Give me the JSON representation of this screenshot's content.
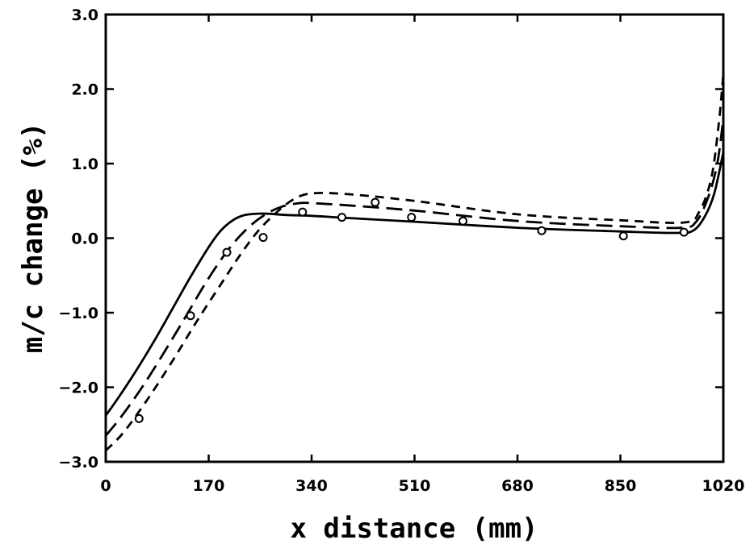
{
  "chart_data": {
    "type": "line",
    "title": "",
    "xlabel": "x distance (mm)",
    "ylabel": "m/c change (%)",
    "xlim": [
      0,
      1020
    ],
    "ylim": [
      -3.0,
      3.0
    ],
    "x_ticks": [
      "0",
      "170",
      "340",
      "510",
      "680",
      "850",
      "1020"
    ],
    "y_ticks": [
      "3.0",
      "2.0",
      "1.0",
      "0.0",
      "-1.0",
      "-2.0",
      "-3.0"
    ],
    "grid": false,
    "legend": "none",
    "series": [
      {
        "style": "solid",
        "points": [
          [
            0,
            -2.38
          ],
          [
            20,
            -2.15
          ],
          [
            50,
            -1.78
          ],
          [
            80,
            -1.38
          ],
          [
            110,
            -0.95
          ],
          [
            140,
            -0.52
          ],
          [
            170,
            -0.12
          ],
          [
            190,
            0.1
          ],
          [
            210,
            0.24
          ],
          [
            230,
            0.31
          ],
          [
            260,
            0.33
          ],
          [
            300,
            0.31
          ],
          [
            340,
            0.3
          ],
          [
            400,
            0.27
          ],
          [
            510,
            0.22
          ],
          [
            680,
            0.14
          ],
          [
            850,
            0.09
          ],
          [
            940,
            0.07
          ],
          [
            970,
            0.1
          ],
          [
            990,
            0.3
          ],
          [
            1005,
            0.6
          ],
          [
            1020,
            1.15
          ]
        ]
      },
      {
        "style": "long-dash",
        "points": [
          [
            0,
            -2.65
          ],
          [
            25,
            -2.4
          ],
          [
            60,
            -2.0
          ],
          [
            95,
            -1.55
          ],
          [
            130,
            -1.08
          ],
          [
            165,
            -0.6
          ],
          [
            200,
            -0.18
          ],
          [
            230,
            0.1
          ],
          [
            260,
            0.3
          ],
          [
            290,
            0.42
          ],
          [
            320,
            0.47
          ],
          [
            340,
            0.47
          ],
          [
            400,
            0.44
          ],
          [
            510,
            0.37
          ],
          [
            680,
            0.23
          ],
          [
            850,
            0.16
          ],
          [
            950,
            0.14
          ],
          [
            975,
            0.22
          ],
          [
            995,
            0.55
          ],
          [
            1010,
            1.0
          ],
          [
            1020,
            1.6
          ]
        ]
      },
      {
        "style": "short-dash",
        "points": [
          [
            0,
            -2.85
          ],
          [
            30,
            -2.6
          ],
          [
            70,
            -2.15
          ],
          [
            110,
            -1.65
          ],
          [
            150,
            -1.12
          ],
          [
            190,
            -0.62
          ],
          [
            220,
            -0.25
          ],
          [
            250,
            0.08
          ],
          [
            280,
            0.33
          ],
          [
            310,
            0.52
          ],
          [
            340,
            0.6
          ],
          [
            400,
            0.59
          ],
          [
            510,
            0.5
          ],
          [
            680,
            0.32
          ],
          [
            850,
            0.24
          ],
          [
            955,
            0.21
          ],
          [
            980,
            0.35
          ],
          [
            1000,
            0.8
          ],
          [
            1012,
            1.5
          ],
          [
            1020,
            2.2
          ]
        ]
      }
    ],
    "observed": [
      [
        55,
        -2.42
      ],
      [
        140,
        -1.04
      ],
      [
        200,
        -0.19
      ],
      [
        260,
        0.01
      ],
      [
        325,
        0.35
      ],
      [
        390,
        0.28
      ],
      [
        445,
        0.48
      ],
      [
        505,
        0.28
      ],
      [
        590,
        0.23
      ],
      [
        720,
        0.1
      ],
      [
        855,
        0.03
      ],
      [
        955,
        0.08
      ]
    ]
  }
}
